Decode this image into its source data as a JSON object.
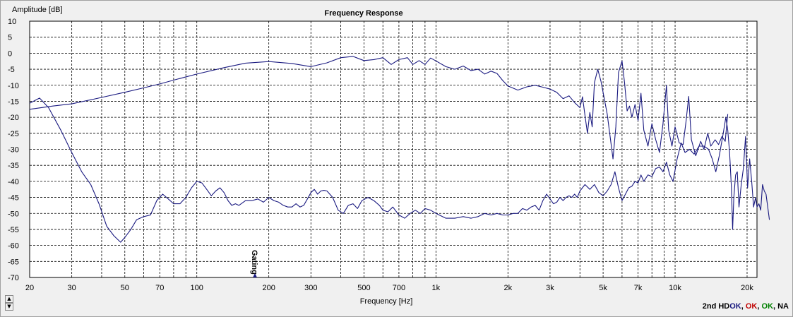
{
  "chart_data": {
    "type": "line",
    "title": "Frequency Response",
    "xlabel": "Frequency [Hz]",
    "ylabel": "Amplitude [dB]",
    "xscale": "log",
    "xlim": [
      20,
      22000
    ],
    "ylim": [
      -70,
      10
    ],
    "grid": true,
    "x_tick_labels": [
      {
        "v": 20,
        "t": "20"
      },
      {
        "v": 30,
        "t": "30"
      },
      {
        "v": 50,
        "t": "50"
      },
      {
        "v": 70,
        "t": "70"
      },
      {
        "v": 100,
        "t": "100"
      },
      {
        "v": 200,
        "t": "200"
      },
      {
        "v": 300,
        "t": "300"
      },
      {
        "v": 500,
        "t": "500"
      },
      {
        "v": 700,
        "t": "700"
      },
      {
        "v": 1000,
        "t": "1k"
      },
      {
        "v": 2000,
        "t": "2k"
      },
      {
        "v": 3000,
        "t": "3k"
      },
      {
        "v": 5000,
        "t": "5k"
      },
      {
        "v": 7000,
        "t": "7k"
      },
      {
        "v": 10000,
        "t": "10k"
      },
      {
        "v": 20000,
        "t": "20k"
      }
    ],
    "y_ticks": [
      10,
      5,
      0,
      -5,
      -10,
      -15,
      -20,
      -25,
      -30,
      -35,
      -40,
      -45,
      -50,
      -55,
      -60,
      -65,
      -70
    ],
    "gating_marker": {
      "x": 175,
      "label": "Gating"
    },
    "series": [
      {
        "color": "#1a1a80",
        "points": [
          [
            20,
            -17.5
          ],
          [
            25,
            -16.5
          ],
          [
            30,
            -15.8
          ],
          [
            40,
            -13.8
          ],
          [
            50,
            -12.2
          ],
          [
            60,
            -10.8
          ],
          [
            70,
            -9.6
          ],
          [
            80,
            -8.4
          ],
          [
            100,
            -6.5
          ],
          [
            130,
            -4.5
          ],
          [
            160,
            -3.1
          ],
          [
            200,
            -2.6
          ],
          [
            250,
            -3.2
          ],
          [
            300,
            -4.2
          ],
          [
            350,
            -3.0
          ],
          [
            400,
            -1.4
          ],
          [
            450,
            -1.0
          ],
          [
            500,
            -2.3
          ],
          [
            550,
            -2.0
          ],
          [
            600,
            -1.4
          ],
          [
            650,
            -3.5
          ],
          [
            700,
            -2.0
          ],
          [
            760,
            -1.4
          ],
          [
            800,
            -3.5
          ],
          [
            850,
            -2.3
          ],
          [
            900,
            -3.5
          ],
          [
            950,
            -1.5
          ],
          [
            1000,
            -2.4
          ],
          [
            1100,
            -4.2
          ],
          [
            1200,
            -5.0
          ],
          [
            1300,
            -4.0
          ],
          [
            1400,
            -5.4
          ],
          [
            1500,
            -5.0
          ],
          [
            1600,
            -6.5
          ],
          [
            1700,
            -5.6
          ],
          [
            1800,
            -6.3
          ],
          [
            1900,
            -8.5
          ],
          [
            2000,
            -10.2
          ],
          [
            2200,
            -11.5
          ],
          [
            2400,
            -10.5
          ],
          [
            2600,
            -10.0
          ],
          [
            2800,
            -10.6
          ],
          [
            3000,
            -11.2
          ],
          [
            3200,
            -12.2
          ],
          [
            3400,
            -14.2
          ],
          [
            3600,
            -13.3
          ],
          [
            3800,
            -15.4
          ],
          [
            4000,
            -17.0
          ],
          [
            4100,
            -13.6
          ],
          [
            4200,
            -19.4
          ],
          [
            4300,
            -25.0
          ],
          [
            4400,
            -18.5
          ],
          [
            4500,
            -23.0
          ],
          [
            4600,
            -9.2
          ],
          [
            4750,
            -5.0
          ],
          [
            4900,
            -8.8
          ],
          [
            5050,
            -14.0
          ],
          [
            5200,
            -19.0
          ],
          [
            5350,
            -26.0
          ],
          [
            5500,
            -33.0
          ],
          [
            5650,
            -23.0
          ],
          [
            5800,
            -6.0
          ],
          [
            6000,
            -2.4
          ],
          [
            6150,
            -9.3
          ],
          [
            6300,
            -18.0
          ],
          [
            6450,
            -16.5
          ],
          [
            6600,
            -20.0
          ],
          [
            6800,
            -16.0
          ],
          [
            7000,
            -21.0
          ],
          [
            7200,
            -12.5
          ],
          [
            7400,
            -24.0
          ],
          [
            7700,
            -29.0
          ],
          [
            8000,
            -22.0
          ],
          [
            8300,
            -27.0
          ],
          [
            8600,
            -31.0
          ],
          [
            8900,
            -22.0
          ],
          [
            9200,
            -10.0
          ],
          [
            9400,
            -24.0
          ],
          [
            9700,
            -29.0
          ],
          [
            10000,
            -23.0
          ],
          [
            10400,
            -28.0
          ],
          [
            10800,
            -28.5
          ],
          [
            11100,
            -21.5
          ],
          [
            11400,
            -13.5
          ],
          [
            11700,
            -27.0
          ],
          [
            12200,
            -32.0
          ],
          [
            12800,
            -27.5
          ],
          [
            13200,
            -30.0
          ],
          [
            13700,
            -25.0
          ],
          [
            14100,
            -29.0
          ],
          [
            14700,
            -27.0
          ],
          [
            15200,
            -28.5
          ],
          [
            15700,
            -26.0
          ],
          [
            16200,
            -27.5
          ],
          [
            16600,
            -19.0
          ]
        ]
      },
      {
        "color": "#1a1a80",
        "points": [
          [
            20,
            -15.6
          ],
          [
            22,
            -14.0
          ],
          [
            24,
            -17.0
          ],
          [
            27,
            -24.0
          ],
          [
            30,
            -31.0
          ],
          [
            33,
            -37.0
          ],
          [
            36,
            -41.0
          ],
          [
            39,
            -47.0
          ],
          [
            42,
            -54.0
          ],
          [
            45,
            -57.0
          ],
          [
            48,
            -59.0
          ],
          [
            50,
            -57.5
          ],
          [
            53,
            -55.0
          ],
          [
            56,
            -52.0
          ],
          [
            60,
            -51.0
          ],
          [
            64,
            -50.5
          ],
          [
            68,
            -46.0
          ],
          [
            72,
            -44.0
          ],
          [
            76,
            -45.5
          ],
          [
            80,
            -47.0
          ],
          [
            85,
            -47.0
          ],
          [
            90,
            -45.0
          ],
          [
            95,
            -42.0
          ],
          [
            100,
            -40.0
          ],
          [
            105,
            -40.5
          ],
          [
            110,
            -42.5
          ],
          [
            115,
            -44.5
          ],
          [
            120,
            -43.0
          ],
          [
            125,
            -42.0
          ],
          [
            130,
            -43.5
          ],
          [
            135,
            -46.0
          ],
          [
            140,
            -47.5
          ],
          [
            145,
            -47.0
          ],
          [
            150,
            -47.5
          ],
          [
            160,
            -46.0
          ],
          [
            170,
            -46.0
          ],
          [
            180,
            -45.5
          ],
          [
            190,
            -46.5
          ],
          [
            200,
            -45.0
          ],
          [
            210,
            -46.0
          ],
          [
            220,
            -46.5
          ],
          [
            230,
            -47.5
          ],
          [
            240,
            -48.0
          ],
          [
            250,
            -48.0
          ],
          [
            260,
            -47.0
          ],
          [
            270,
            -48.0
          ],
          [
            280,
            -47.5
          ],
          [
            290,
            -45.5
          ],
          [
            300,
            -43.5
          ],
          [
            310,
            -42.5
          ],
          [
            320,
            -44.0
          ],
          [
            330,
            -43.0
          ],
          [
            340,
            -42.8
          ],
          [
            350,
            -43.0
          ],
          [
            370,
            -45.0
          ],
          [
            390,
            -49.0
          ],
          [
            410,
            -50.0
          ],
          [
            430,
            -47.5
          ],
          [
            450,
            -47.0
          ],
          [
            470,
            -48.5
          ],
          [
            490,
            -46.0
          ],
          [
            520,
            -45.0
          ],
          [
            550,
            -46.0
          ],
          [
            580,
            -47.5
          ],
          [
            600,
            -49.0
          ],
          [
            630,
            -49.5
          ],
          [
            660,
            -48.0
          ],
          [
            700,
            -50.5
          ],
          [
            740,
            -51.5
          ],
          [
            780,
            -50.0
          ],
          [
            820,
            -49.0
          ],
          [
            860,
            -50.0
          ],
          [
            900,
            -48.5
          ],
          [
            950,
            -49.0
          ],
          [
            1000,
            -50.0
          ],
          [
            1100,
            -51.5
          ],
          [
            1200,
            -51.5
          ],
          [
            1300,
            -51.0
          ],
          [
            1400,
            -51.5
          ],
          [
            1500,
            -51.0
          ],
          [
            1600,
            -50.0
          ],
          [
            1700,
            -50.5
          ],
          [
            1800,
            -50.0
          ],
          [
            1900,
            -50.5
          ],
          [
            2000,
            -50.5
          ],
          [
            2100,
            -50.0
          ],
          [
            2200,
            -50.0
          ],
          [
            2300,
            -48.5
          ],
          [
            2400,
            -49.0
          ],
          [
            2500,
            -48.0
          ],
          [
            2600,
            -47.5
          ],
          [
            2700,
            -49.0
          ],
          [
            2800,
            -46.0
          ],
          [
            2900,
            -44.0
          ],
          [
            3000,
            -45.5
          ],
          [
            3100,
            -47.0
          ],
          [
            3200,
            -46.5
          ],
          [
            3300,
            -45.0
          ],
          [
            3400,
            -46.0
          ],
          [
            3500,
            -45.0
          ],
          [
            3600,
            -44.5
          ],
          [
            3700,
            -45.0
          ],
          [
            3800,
            -44.0
          ],
          [
            3900,
            -45.0
          ],
          [
            4000,
            -43.0
          ],
          [
            4200,
            -41.0
          ],
          [
            4400,
            -42.5
          ],
          [
            4600,
            -41.0
          ],
          [
            4800,
            -43.5
          ],
          [
            5000,
            -44.5
          ],
          [
            5200,
            -43.0
          ],
          [
            5400,
            -41.0
          ],
          [
            5600,
            -37.0
          ],
          [
            5800,
            -42.0
          ],
          [
            6000,
            -46.0
          ],
          [
            6200,
            -44.0
          ],
          [
            6400,
            -42.0
          ],
          [
            6600,
            -41.5
          ],
          [
            6800,
            -40.0
          ],
          [
            7000,
            -40.5
          ],
          [
            7200,
            -38.0
          ],
          [
            7400,
            -40.0
          ],
          [
            7700,
            -38.0
          ],
          [
            8000,
            -38.5
          ],
          [
            8300,
            -36.0
          ],
          [
            8600,
            -35.5
          ],
          [
            8900,
            -37.0
          ],
          [
            9200,
            -34.0
          ],
          [
            9500,
            -38.0
          ],
          [
            9800,
            -40.0
          ],
          [
            10200,
            -33.0
          ],
          [
            10600,
            -28.0
          ],
          [
            11000,
            -31.0
          ],
          [
            11500,
            -30.0
          ],
          [
            12000,
            -31.5
          ],
          [
            12600,
            -29.0
          ],
          [
            13200,
            -29.0
          ],
          [
            13800,
            -30.0
          ],
          [
            14300,
            -33.0
          ],
          [
            14800,
            -37.0
          ],
          [
            15300,
            -32.0
          ],
          [
            15900,
            -25.0
          ],
          [
            16300,
            -20.0
          ],
          [
            16600,
            -24.0
          ],
          [
            16900,
            -31.0
          ],
          [
            17200,
            -42.0
          ],
          [
            17400,
            -55.0
          ],
          [
            17600,
            -45.0
          ],
          [
            17900,
            -38.0
          ],
          [
            18200,
            -37.0
          ],
          [
            18500,
            -48.0
          ],
          [
            18900,
            -41.0
          ],
          [
            19300,
            -36.0
          ],
          [
            19700,
            -26.0
          ],
          [
            20100,
            -42.0
          ],
          [
            20500,
            -33.0
          ],
          [
            20900,
            -40.0
          ],
          [
            21300,
            -48.0
          ],
          [
            21700,
            -45.0
          ],
          [
            22000,
            -48.0
          ],
          [
            22400,
            -47.0
          ],
          [
            22800,
            -49.0
          ],
          [
            23200,
            -41.0
          ],
          [
            23600,
            -43.0
          ],
          [
            24000,
            -44.0
          ],
          [
            24400,
            -48.0
          ],
          [
            24800,
            -52.0
          ]
        ]
      }
    ]
  },
  "status": {
    "prefix": "2nd HD",
    "items": [
      {
        "label": "OK",
        "color": "#1a1a80"
      },
      {
        "label": ", ",
        "color": "#000000"
      },
      {
        "label": "OK",
        "color": "#c00000"
      },
      {
        "label": ", ",
        "color": "#000000"
      },
      {
        "label": "OK",
        "color": "#008000"
      },
      {
        "label": ", NA",
        "color": "#000000"
      }
    ]
  },
  "scroll": {
    "up_icon": "▲",
    "down_icon": "▼"
  }
}
